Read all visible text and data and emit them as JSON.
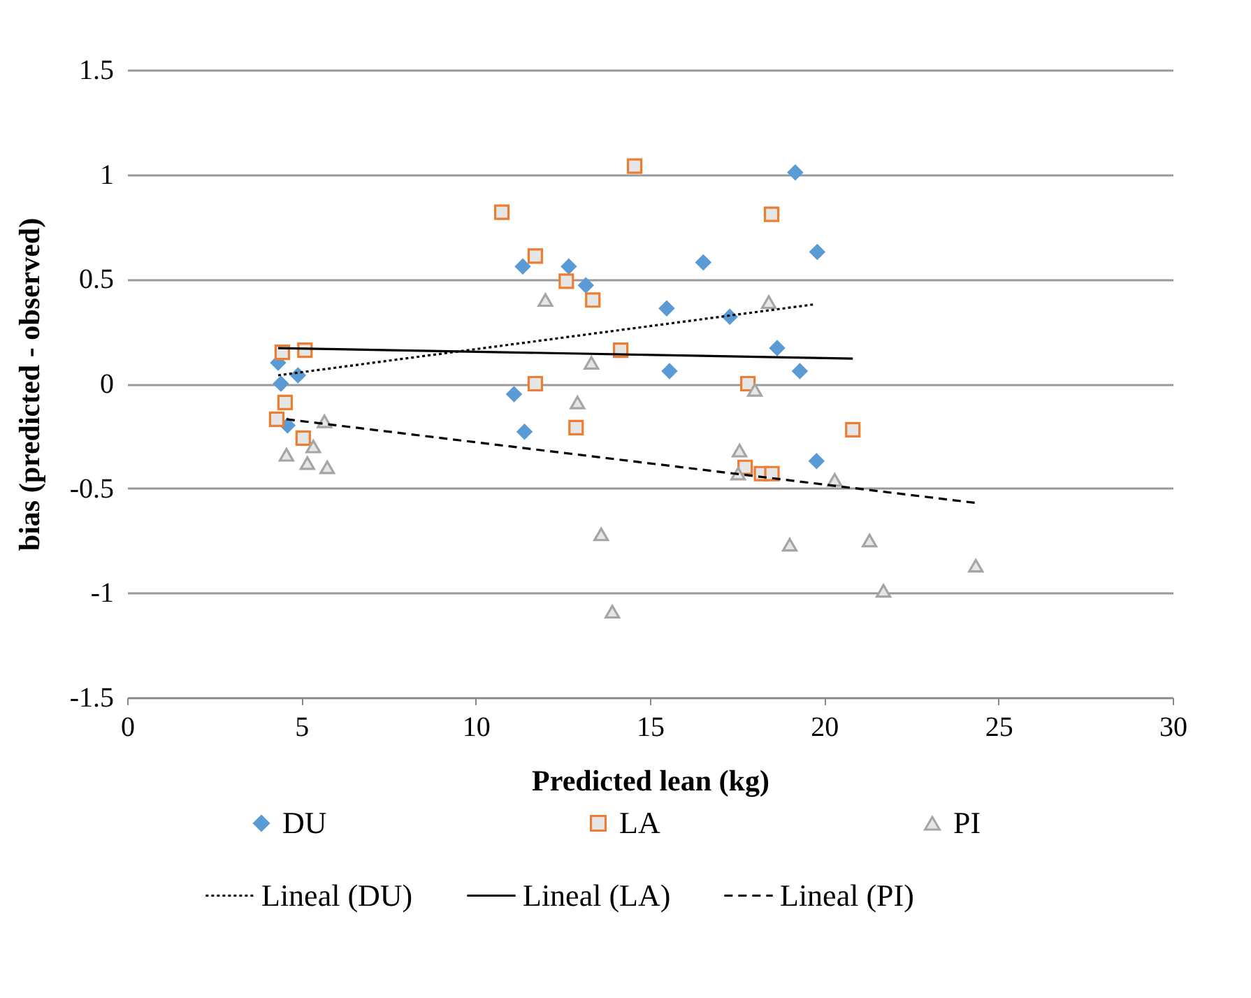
{
  "chart_data": {
    "type": "scatter",
    "xlabel": "Predicted lean (kg)",
    "ylabel": "bias (predicted - observed)",
    "xlim": [
      0,
      30
    ],
    "xticks": [
      0,
      5,
      10,
      15,
      20,
      25,
      30
    ],
    "ylim": [
      -1.5,
      1.5
    ],
    "yticks": [
      -1.5,
      -1,
      -0.5,
      0,
      0.5,
      1,
      1.5
    ],
    "grid": "y",
    "legend": "bottom",
    "series": [
      {
        "name": "DU",
        "color": "#5b9bd5",
        "marker": "diamond",
        "x": [
          4.33,
          4.41,
          4.9,
          4.6,
          11.35,
          12.67,
          13.16,
          16.53,
          15.48,
          17.29,
          15.56,
          11.1,
          11.4,
          19.17,
          19.8,
          18.65,
          19.3,
          19.78
        ],
        "values": [
          0.1,
          0.0,
          0.04,
          -0.2,
          0.56,
          0.56,
          0.47,
          0.58,
          0.36,
          0.32,
          0.06,
          -0.05,
          -0.23,
          1.01,
          0.63,
          0.17,
          0.06,
          -0.37
        ]
      },
      {
        "name": "LA",
        "color": "#ed7d31",
        "marker": "square",
        "x": [
          4.45,
          5.1,
          4.53,
          4.29,
          5.05,
          14.56,
          10.75,
          11.71,
          12.6,
          13.36,
          14.16,
          11.71,
          12.88,
          18.49,
          17.81,
          20.82,
          17.73,
          18.2,
          18.5
        ],
        "values": [
          0.15,
          0.16,
          -0.09,
          -0.17,
          -0.26,
          1.04,
          0.82,
          0.61,
          0.49,
          0.4,
          0.16,
          0.0,
          -0.21,
          0.81,
          0.0,
          -0.22,
          -0.4,
          -0.43,
          -0.43
        ]
      },
      {
        "name": "PI",
        "color": "#a5a5a5",
        "marker": "triangle",
        "x": [
          5.66,
          5.34,
          4.57,
          5.17,
          5.74,
          12.0,
          13.32,
          12.92,
          13.6,
          13.92,
          17.57,
          17.53,
          18.41,
          18.01,
          20.3,
          19.01,
          21.3,
          21.7,
          24.35
        ],
        "values": [
          -0.18,
          -0.3,
          -0.34,
          -0.38,
          -0.4,
          0.4,
          0.1,
          -0.09,
          -0.72,
          -1.09,
          -0.32,
          -0.43,
          0.39,
          -0.03,
          -0.46,
          -0.77,
          -0.75,
          -0.99,
          -0.87
        ]
      },
      {
        "name": "Lineal (DU)",
        "type": "line",
        "color": "#000000",
        "line_style": "dotted",
        "x": [
          4.33,
          19.75
        ],
        "values": [
          0.04,
          0.38
        ]
      },
      {
        "name": "Lineal (LA)",
        "type": "line",
        "color": "#000000",
        "line_style": "solid",
        "x": [
          4.33,
          20.82
        ],
        "values": [
          0.17,
          0.12
        ]
      },
      {
        "name": "Lineal (PI)",
        "type": "line",
        "color": "#000000",
        "line_style": "dashed",
        "x": [
          4.57,
          24.35
        ],
        "values": [
          -0.17,
          -0.57
        ]
      }
    ]
  }
}
